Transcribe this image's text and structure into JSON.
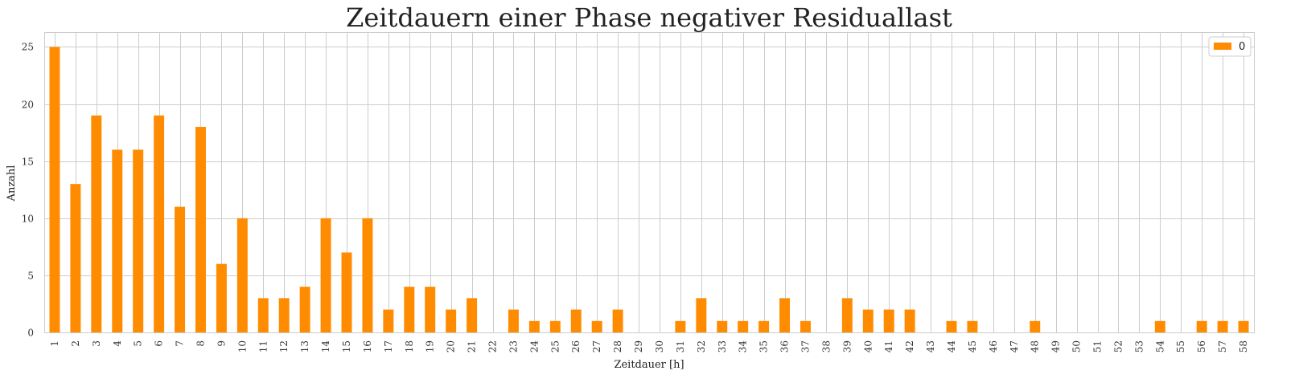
{
  "chart_data": {
    "type": "bar",
    "title": "Zeitdauern einer Phase negativer Residuallast",
    "xlabel": "Zeitdauer [h]",
    "ylabel": "Anzahl",
    "ylim": [
      0,
      26.3
    ],
    "yticks": [
      0,
      5,
      10,
      15,
      20,
      25
    ],
    "grid": true,
    "legend_position": "top-right",
    "categories": [
      "1",
      "2",
      "3",
      "4",
      "5",
      "6",
      "7",
      "8",
      "9",
      "10",
      "11",
      "12",
      "13",
      "14",
      "15",
      "16",
      "17",
      "18",
      "19",
      "20",
      "21",
      "22",
      "23",
      "24",
      "25",
      "26",
      "27",
      "28",
      "29",
      "30",
      "31",
      "32",
      "33",
      "34",
      "35",
      "36",
      "37",
      "38",
      "39",
      "40",
      "41",
      "42",
      "43",
      "44",
      "45",
      "46",
      "47",
      "48",
      "49",
      "50",
      "51",
      "52",
      "53",
      "54",
      "55",
      "56",
      "57",
      "58"
    ],
    "series": [
      {
        "name": "0",
        "color": "#ff8c00",
        "values": [
          25,
          13,
          19,
          16,
          16,
          19,
          11,
          18,
          6,
          10,
          3,
          3,
          4,
          10,
          7,
          10,
          2,
          4,
          4,
          2,
          3,
          0,
          2,
          1,
          1,
          2,
          1,
          2,
          0,
          0,
          1,
          3,
          1,
          1,
          1,
          3,
          1,
          0,
          3,
          2,
          2,
          2,
          0,
          1,
          1,
          0,
          0,
          1,
          0,
          0,
          0,
          0,
          0,
          1,
          0,
          1,
          1,
          1
        ]
      }
    ]
  }
}
